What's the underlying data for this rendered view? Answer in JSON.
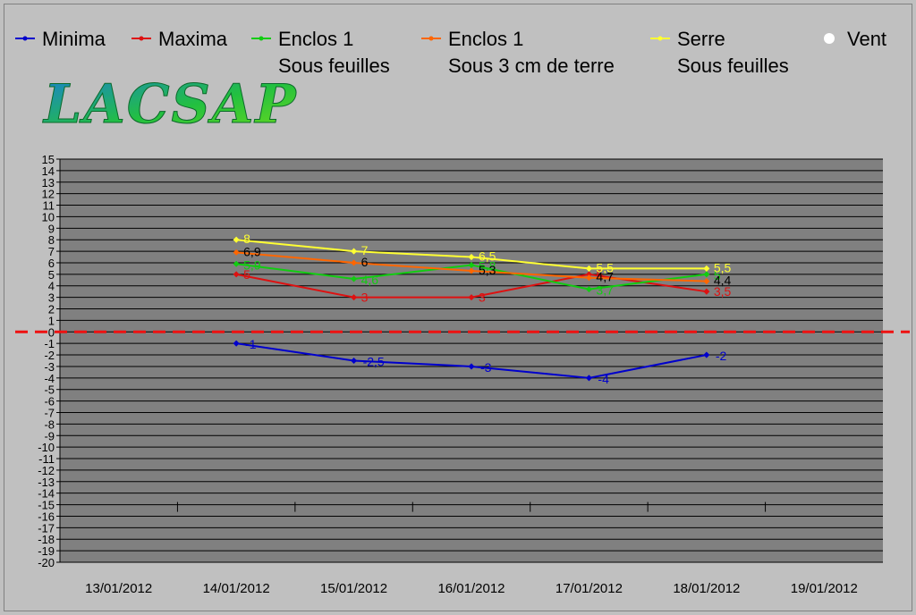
{
  "logo": {
    "text": "LACSAP"
  },
  "legend": [
    {
      "key": "minima",
      "line1": "Minima",
      "line2": "",
      "color": "#0000cc",
      "marker": "line"
    },
    {
      "key": "maxima",
      "line1": "Maxima",
      "line2": "",
      "color": "#dd1111",
      "marker": "line"
    },
    {
      "key": "enclos1_feuilles",
      "line1": "Enclos 1",
      "line2": "Sous feuilles",
      "color": "#11cc11",
      "marker": "line"
    },
    {
      "key": "enclos1_terre",
      "line1": "Enclos 1",
      "line2": "Sous 3 cm de terre",
      "color": "#ff6600",
      "marker": "line"
    },
    {
      "key": "serre",
      "line1": "Serre",
      "line2": "Sous feuilles",
      "color": "#ffff33",
      "marker": "line"
    },
    {
      "key": "vent",
      "line1": "Vent",
      "line2": "",
      "color": "#ffffff",
      "marker": "dot"
    }
  ],
  "chart_data": {
    "type": "line",
    "title": "",
    "xlabel": "",
    "ylabel": "",
    "categories": [
      "13/01/2012",
      "14/01/2012",
      "15/01/2012",
      "16/01/2012",
      "17/01/2012",
      "18/01/2012",
      "19/01/2012"
    ],
    "ylim": [
      -20,
      15
    ],
    "ytick_step": 1,
    "grid": true,
    "reference_line": {
      "y": 0,
      "color": "#ee1111",
      "style": "dashed"
    },
    "series": [
      {
        "name": "Minima",
        "color": "#0000cc",
        "label_color": "#0000cc",
        "values": [
          null,
          -1,
          -2.5,
          -3,
          -4,
          -2,
          null
        ],
        "labels": [
          null,
          "-1",
          "-2,5",
          "-3",
          "-4",
          "-2",
          null
        ]
      },
      {
        "name": "Maxima",
        "color": "#dd1111",
        "label_color": "#dd1111",
        "values": [
          null,
          5,
          3,
          3,
          5,
          3.5,
          null
        ],
        "labels": [
          null,
          "5",
          "3",
          "3",
          "5",
          "3,5",
          null
        ]
      },
      {
        "name": "Enclos 1 Sous feuilles",
        "color": "#11cc11",
        "label_color": "#11cc11",
        "values": [
          null,
          5.9,
          4.6,
          5.8,
          3.7,
          5,
          null
        ],
        "labels": [
          null,
          "5,9",
          "4,6",
          "5,8",
          "3,7",
          "5",
          null
        ]
      },
      {
        "name": "Enclos 1 Sous 3 cm de terre",
        "color": "#ff6600",
        "label_color": "#000000",
        "values": [
          null,
          6.9,
          6,
          5.3,
          4.7,
          4.4,
          null
        ],
        "labels": [
          null,
          "6,9",
          "6",
          "5,3",
          "4,7",
          "4,4",
          null
        ]
      },
      {
        "name": "Serre Sous feuilles",
        "color": "#ffff33",
        "label_color": "#ffff33",
        "values": [
          null,
          8,
          7,
          6.5,
          5.5,
          5.5,
          null
        ],
        "labels": [
          null,
          "8",
          "7",
          "6,5",
          "5,5",
          "5,5",
          null
        ]
      }
    ]
  }
}
